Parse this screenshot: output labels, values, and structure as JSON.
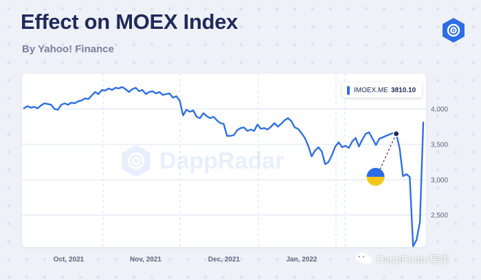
{
  "header": {
    "title": "Effect on MOEX Index",
    "subtitle": "By Yahoo! Finance"
  },
  "legend": {
    "series_name": "IMOEX.ME",
    "last_value": "3810.10",
    "color": "#2d6ee6"
  },
  "watermark": {
    "text": "DappRadar"
  },
  "wechat_mark": {
    "text": "DappRadar榜单"
  },
  "chart_data": {
    "type": "line",
    "title": "Effect on MOEX Index",
    "subtitle": "By Yahoo! Finance",
    "xlabel": "",
    "ylabel": "",
    "x_ticks": [
      "Oct, 2021",
      "Nov, 2021",
      "Dec, 2021",
      "Jan, 2022"
    ],
    "y_ticks": [
      "4,000",
      "3,500",
      "3,000",
      "2,500"
    ],
    "ylim": [
      2050,
      4500
    ],
    "grid": {
      "horizontal": true,
      "vertical_dashed": true
    },
    "legend_position": "top-right",
    "annotation": {
      "icon": "ukraine-flag-icon",
      "event_index": 110,
      "colors": [
        "#2b6ce6",
        "#f5c518"
      ]
    },
    "series": [
      {
        "name": "IMOEX.ME",
        "values": [
          4010,
          4040,
          4020,
          4030,
          4010,
          4050,
          4080,
          4070,
          4060,
          4000,
          3990,
          4060,
          4080,
          4060,
          4090,
          4080,
          4110,
          4120,
          4150,
          4140,
          4190,
          4240,
          4210,
          4270,
          4260,
          4290,
          4270,
          4300,
          4290,
          4310,
          4280,
          4240,
          4280,
          4300,
          4250,
          4270,
          4210,
          4240,
          4250,
          4220,
          4240,
          4200,
          4210,
          4220,
          4160,
          4180,
          4120,
          3910,
          3990,
          3960,
          3980,
          3890,
          3870,
          3940,
          3900,
          3870,
          3890,
          3840,
          3800,
          3790,
          3620,
          3620,
          3630,
          3700,
          3730,
          3740,
          3690,
          3710,
          3690,
          3780,
          3720,
          3730,
          3710,
          3750,
          3800,
          3750,
          3790,
          3840,
          3870,
          3830,
          3740,
          3720,
          3660,
          3590,
          3480,
          3330,
          3410,
          3460,
          3400,
          3220,
          3250,
          3350,
          3470,
          3530,
          3460,
          3480,
          3450,
          3540,
          3590,
          3470,
          3570,
          3650,
          3670,
          3580,
          3490,
          3580,
          3600,
          3620,
          3640,
          3660,
          3650,
          3450,
          3050,
          3080,
          3040,
          2060,
          2150,
          2400,
          3810
        ]
      }
    ]
  }
}
